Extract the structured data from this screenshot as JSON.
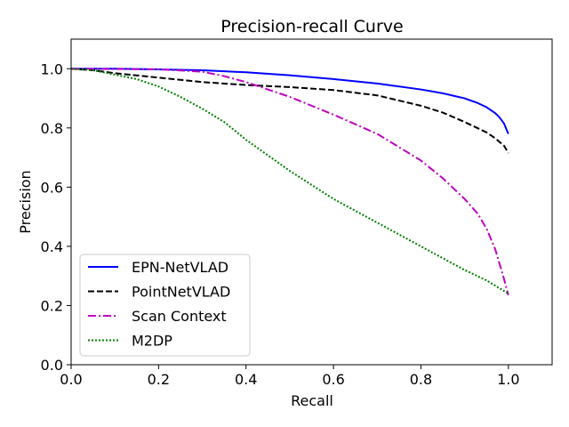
{
  "chart_data": {
    "type": "line",
    "title": "Precision-recall Curve",
    "xlabel": "Recall",
    "ylabel": "Precision",
    "xlim": [
      0.0,
      1.1
    ],
    "ylim": [
      0.0,
      1.1
    ],
    "xticks": [
      0.0,
      0.2,
      0.4,
      0.6,
      0.8,
      1.0
    ],
    "yticks": [
      0.0,
      0.2,
      0.4,
      0.6,
      0.8,
      1.0
    ],
    "xtick_labels": [
      "0.0",
      "0.2",
      "0.4",
      "0.6",
      "0.8",
      "1.0"
    ],
    "ytick_labels": [
      "0.0",
      "0.2",
      "0.4",
      "0.6",
      "0.8",
      "1.0"
    ],
    "grid": false,
    "legend_position": "lower-left",
    "series": [
      {
        "name": "EPN-NetVLAD",
        "color": "#0000ff",
        "style": "solid",
        "x": [
          0.0,
          0.1,
          0.2,
          0.3,
          0.4,
          0.5,
          0.6,
          0.7,
          0.8,
          0.85,
          0.9,
          0.93,
          0.95,
          0.97,
          0.98,
          0.99,
          1.0
        ],
        "y": [
          1.0,
          1.0,
          0.998,
          0.995,
          0.988,
          0.978,
          0.965,
          0.95,
          0.93,
          0.917,
          0.9,
          0.884,
          0.87,
          0.85,
          0.835,
          0.815,
          0.78
        ]
      },
      {
        "name": "PointNetVLAD",
        "color": "#000000",
        "style": "dashed",
        "x": [
          0.0,
          0.05,
          0.1,
          0.2,
          0.3,
          0.4,
          0.5,
          0.6,
          0.7,
          0.8,
          0.85,
          0.9,
          0.95,
          0.97,
          0.99,
          1.0
        ],
        "y": [
          1.0,
          0.995,
          0.985,
          0.97,
          0.955,
          0.945,
          0.938,
          0.928,
          0.91,
          0.875,
          0.852,
          0.82,
          0.785,
          0.765,
          0.74,
          0.715
        ]
      },
      {
        "name": "Scan Context",
        "color": "#bf00bf",
        "style": "dashdot",
        "x": [
          0.0,
          0.1,
          0.2,
          0.3,
          0.35,
          0.4,
          0.5,
          0.6,
          0.7,
          0.8,
          0.85,
          0.9,
          0.93,
          0.95,
          0.97,
          0.98,
          0.99,
          1.0
        ],
        "y": [
          1.0,
          0.999,
          0.998,
          0.99,
          0.975,
          0.955,
          0.905,
          0.845,
          0.78,
          0.69,
          0.63,
          0.56,
          0.51,
          0.46,
          0.39,
          0.34,
          0.29,
          0.235
        ]
      },
      {
        "name": "M2DP",
        "color": "#008000",
        "style": "dotted",
        "x": [
          0.0,
          0.05,
          0.1,
          0.15,
          0.2,
          0.25,
          0.3,
          0.35,
          0.4,
          0.5,
          0.6,
          0.7,
          0.8,
          0.9,
          0.95,
          1.0
        ],
        "y": [
          1.0,
          0.995,
          0.98,
          0.965,
          0.94,
          0.905,
          0.865,
          0.82,
          0.76,
          0.655,
          0.56,
          0.48,
          0.4,
          0.32,
          0.285,
          0.24
        ]
      }
    ]
  }
}
